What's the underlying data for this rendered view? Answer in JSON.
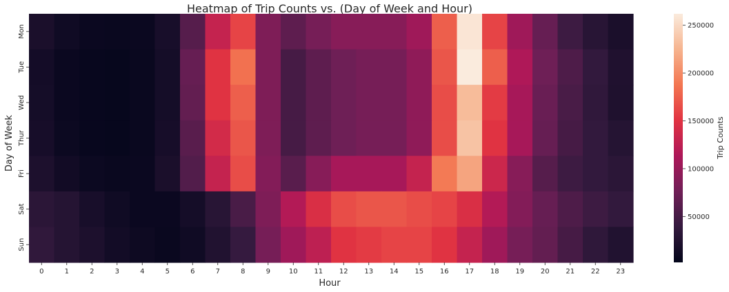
{
  "chart_data": {
    "type": "heatmap",
    "title": "Heatmap of Trip Counts vs. (Day of Week and Hour)",
    "xlabel": "Hour",
    "ylabel": "Day of Week",
    "x": [
      "0",
      "1",
      "2",
      "3",
      "4",
      "5",
      "6",
      "7",
      "8",
      "9",
      "10",
      "11",
      "12",
      "13",
      "14",
      "15",
      "16",
      "17",
      "18",
      "19",
      "20",
      "21",
      "22",
      "23"
    ],
    "y": [
      "Mon",
      "Tue",
      "Wed",
      "Thur",
      "Fri",
      "Sat",
      "Sun"
    ],
    "values": [
      [
        20000,
        12000,
        8000,
        7000,
        8000,
        18000,
        60000,
        130000,
        160000,
        85000,
        65000,
        80000,
        90000,
        90000,
        90000,
        105000,
        175000,
        258000,
        160000,
        105000,
        70000,
        45000,
        30000,
        20000
      ],
      [
        15000,
        8000,
        6000,
        5000,
        7000,
        16000,
        70000,
        150000,
        185000,
        85000,
        50000,
        65000,
        75000,
        80000,
        80000,
        95000,
        170000,
        262000,
        175000,
        115000,
        75000,
        55000,
        38000,
        24000
      ],
      [
        16000,
        8000,
        6000,
        5000,
        7000,
        16000,
        68000,
        150000,
        175000,
        85000,
        50000,
        65000,
        75000,
        80000,
        80000,
        95000,
        165000,
        230000,
        155000,
        110000,
        72000,
        52000,
        36000,
        23000
      ],
      [
        17000,
        9000,
        6000,
        5000,
        7000,
        17000,
        62000,
        140000,
        170000,
        85000,
        50000,
        65000,
        75000,
        80000,
        80000,
        95000,
        165000,
        235000,
        150000,
        110000,
        70000,
        50000,
        38000,
        28000
      ],
      [
        22000,
        13000,
        9000,
        7000,
        8000,
        20000,
        58000,
        130000,
        165000,
        88000,
        62000,
        90000,
        110000,
        110000,
        110000,
        130000,
        190000,
        215000,
        135000,
        90000,
        60000,
        45000,
        38000,
        32000
      ],
      [
        32000,
        28000,
        18000,
        12000,
        8000,
        8000,
        16000,
        30000,
        52000,
        85000,
        118000,
        145000,
        165000,
        170000,
        170000,
        165000,
        160000,
        145000,
        118000,
        88000,
        70000,
        55000,
        45000,
        38000
      ],
      [
        36000,
        28000,
        22000,
        14000,
        10000,
        7000,
        12000,
        25000,
        40000,
        80000,
        105000,
        125000,
        150000,
        155000,
        160000,
        160000,
        150000,
        130000,
        105000,
        80000,
        68000,
        50000,
        35000,
        25000
      ]
    ],
    "vmin": 2000,
    "vmax": 262000,
    "colorbar": {
      "label": "Trip Counts",
      "ticks": [
        50000,
        100000,
        150000,
        200000,
        250000
      ],
      "tick_labels": [
        "50000",
        "100000",
        "150000",
        "200000",
        "250000"
      ]
    },
    "colormap": [
      "#03051a",
      "#341a3e",
      "#701f57",
      "#ad1759",
      "#e13342",
      "#f37651",
      "#f6b48f",
      "#faebdd"
    ],
    "grid": false,
    "legend": "colorbar-right"
  }
}
